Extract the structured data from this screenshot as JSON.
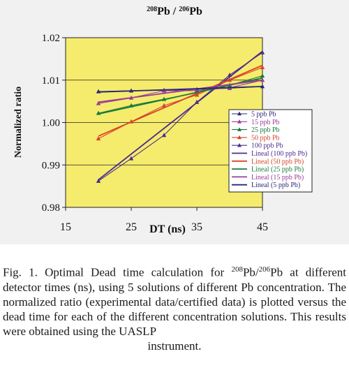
{
  "chart_data": {
    "type": "line",
    "title": {
      "sup1": "208",
      "el1": "Pb",
      "sep": " / ",
      "sup2": "206",
      "el2": "Pb"
    },
    "xlabel": "DT (ns)",
    "ylabel": "Normalized ratio",
    "xlim": [
      15,
      45
    ],
    "ylim": [
      0.98,
      1.02
    ],
    "x_ticks": [
      15,
      25,
      35,
      45
    ],
    "y_ticks": [
      "0.98",
      "0.99",
      "1.00",
      "1.01",
      "1.02"
    ],
    "grid": "horizontal",
    "legend_position": "right",
    "plot_background": "#f5ec6e",
    "series": [
      {
        "name": "5 ppb Pb",
        "color": "#28287a",
        "marker": "triangle",
        "x": [
          20,
          25,
          30,
          35,
          40,
          45
        ],
        "values": [
          1.0073,
          1.0075,
          1.0076,
          1.0078,
          1.0081,
          1.0085
        ]
      },
      {
        "name": "15 ppb Pb",
        "color": "#9a3c9a",
        "marker": "triangle",
        "x": [
          20,
          25,
          30,
          35,
          40,
          45
        ],
        "values": [
          1.0045,
          1.0058,
          1.0075,
          1.0075,
          1.0082,
          1.01
        ]
      },
      {
        "name": "25 ppb Pb",
        "color": "#1a7a3a",
        "marker": "triangle",
        "x": [
          20,
          25,
          30,
          35,
          40,
          45
        ],
        "values": [
          1.0022,
          1.004,
          1.0055,
          1.007,
          1.0088,
          1.011
        ]
      },
      {
        "name": "50 ppb Pb",
        "color": "#d8442a",
        "marker": "triangle",
        "x": [
          20,
          25,
          30,
          35,
          40,
          45
        ],
        "values": [
          0.9962,
          1.0002,
          1.004,
          1.0065,
          1.01,
          1.013
        ]
      },
      {
        "name": "100 ppb Pb",
        "color": "#4a2c8a",
        "marker": "triangle",
        "x": [
          20,
          25,
          30,
          35,
          40,
          45
        ],
        "values": [
          0.9862,
          0.9915,
          0.997,
          1.0048,
          1.0112,
          1.0165
        ]
      },
      {
        "name": "Lineal (100 ppb Pb)",
        "color": "#4a2c8a",
        "marker": "none",
        "x": [
          20,
          45
        ],
        "values": [
          0.9865,
          1.0168
        ]
      },
      {
        "name": "Lineal (50 ppb Pb)",
        "color": "#d8442a",
        "marker": "none",
        "x": [
          20,
          45
        ],
        "values": [
          0.9968,
          1.0135
        ]
      },
      {
        "name": "Lineal (25 ppb Pb)",
        "color": "#1a7a3a",
        "marker": "none",
        "x": [
          20,
          45
        ],
        "values": [
          1.002,
          1.0105
        ]
      },
      {
        "name": "Lineal (15 ppb Pb)",
        "color": "#9a3c9a",
        "marker": "none",
        "x": [
          20,
          45
        ],
        "values": [
          1.0048,
          1.01
        ]
      },
      {
        "name": "Lineal (5 ppb Pb)",
        "color": "#28287a",
        "marker": "none",
        "x": [
          20,
          45
        ],
        "values": [
          1.0072,
          1.0085
        ]
      }
    ]
  },
  "caption": {
    "prefix": "Fig. 1. Optimal Dead time calculation for ",
    "sup1": "208",
    "mid1": "Pb/",
    "sup2": "206",
    "rest": "Pb at different detector times (ns), using 5 solutions of different Pb concentration. The normalized ratio (experimental data/certified data) is plotted versus the dead time for each of the different concentration solutions. This results were obtained using the UASLP",
    "lastline": "instrument."
  }
}
